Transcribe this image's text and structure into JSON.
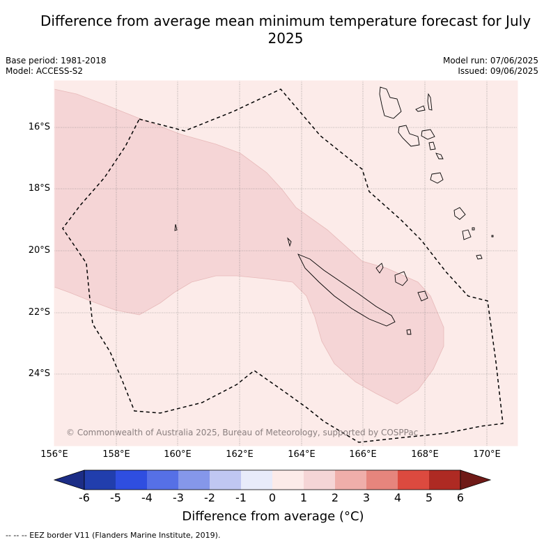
{
  "title": "Difference from average mean minimum temperature forecast for July 2025",
  "meta": {
    "base_period": "Base period: 1981-2018",
    "model": "Model: ACCESS-S2",
    "model_run": "Model run: 07/06/2025",
    "issued": "Issued: 09/06/2025"
  },
  "axes": {
    "lat_labels": [
      "16°S",
      "18°S",
      "20°S",
      "22°S",
      "24°S"
    ],
    "lon_labels": [
      "156°E",
      "158°E",
      "160°E",
      "162°E",
      "164°E",
      "166°E",
      "168°E",
      "170°E"
    ]
  },
  "copyright": "© Commonwealth of Australia 2025, Bureau of Meteorology, supported by COSPPac",
  "colorbar": {
    "title": "Difference from average (°C)",
    "ticks": [
      "-6",
      "-5",
      "-4",
      "-3",
      "-2",
      "-1",
      "0",
      "1",
      "2",
      "3",
      "4",
      "5",
      "6"
    ],
    "colors": [
      "#1c2d86",
      "#213ead",
      "#2f4ee0",
      "#5670e6",
      "#8597ea",
      "#c0c7f2",
      "#e8ebfa",
      "#fcebe9",
      "#f5d5d6",
      "#efaeaa",
      "#e6857d",
      "#dc4a3f",
      "#ae2a23",
      "#6f1a17"
    ]
  },
  "legend_note": "--  --  -- EEZ border V11 (Flanders Marine Institute, 2019).",
  "map_colors": {
    "band_0_1": "#fcebe9",
    "band_1_2": "#f5d5d6"
  }
}
